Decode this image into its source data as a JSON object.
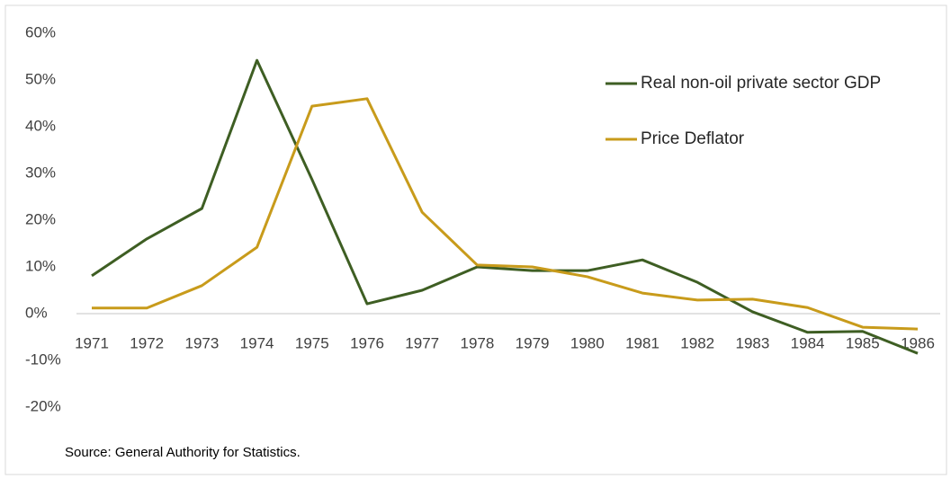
{
  "chart_data": {
    "type": "line",
    "categories": [
      "1971",
      "1972",
      "1973",
      "1974",
      "1975",
      "1976",
      "1977",
      "1978",
      "1979",
      "1980",
      "1981",
      "1982",
      "1983",
      "1984",
      "1985",
      "1986"
    ],
    "series": [
      {
        "name": "Real non-oil private sector GDP",
        "color": "#3e5e23",
        "values": [
          8.1,
          16,
          22.5,
          54.2,
          28.7,
          2.1,
          5,
          10,
          9.2,
          9.2,
          11.5,
          6.7,
          0.4,
          -4,
          -3.8,
          -8.5
        ]
      },
      {
        "name": "Price Deflator",
        "color": "#c89b1b",
        "values": [
          1.2,
          1.2,
          6,
          14.2,
          44.4,
          46,
          21.7,
          10.4,
          10,
          7.9,
          4.4,
          2.9,
          3.1,
          1.3,
          -2.9,
          -3.3
        ]
      }
    ],
    "ylim": [
      -20,
      60
    ],
    "yticks": [
      {
        "value": -20,
        "label": "-20%"
      },
      {
        "value": -10,
        "label": "-10%"
      },
      {
        "value": 0,
        "label": "0%"
      },
      {
        "value": 10,
        "label": "10%"
      },
      {
        "value": 20,
        "label": "20%"
      },
      {
        "value": 30,
        "label": "30%"
      },
      {
        "value": 40,
        "label": "40%"
      },
      {
        "value": 50,
        "label": "50%"
      },
      {
        "value": 60,
        "label": "60%"
      }
    ],
    "source": "Source: General Authority for Statistics."
  }
}
